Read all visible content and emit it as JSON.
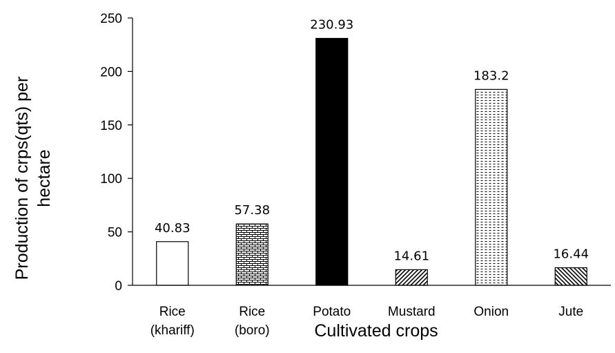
{
  "chart_data": {
    "type": "bar",
    "categories": [
      [
        "Rice",
        "(khariff)"
      ],
      [
        "Rice",
        "(boro)"
      ],
      [
        "Potato"
      ],
      [
        "Mustard"
      ],
      [
        "Onion"
      ],
      [
        "Jute"
      ]
    ],
    "values": [
      40.83,
      57.38,
      230.93,
      14.61,
      183.2,
      16.44
    ],
    "data_labels": [
      "40.83",
      "57.38",
      "230.93",
      "14.61",
      "183.2",
      "16.44"
    ],
    "patterns": [
      "blank",
      "brick",
      "solid",
      "diagonal-up",
      "dashes",
      "diagonal-down"
    ],
    "xlabel": "Cultivated crops",
    "ylabel": [
      "Production of crps(qts) per",
      "hectare"
    ],
    "ylim": [
      0,
      250
    ],
    "yticks": [
      0,
      50,
      100,
      150,
      200,
      250
    ],
    "grid": false,
    "legend": "none",
    "colors": {
      "bar_stroke": "#000000",
      "solid_fill": "#000000",
      "background": "#ffffff"
    }
  }
}
